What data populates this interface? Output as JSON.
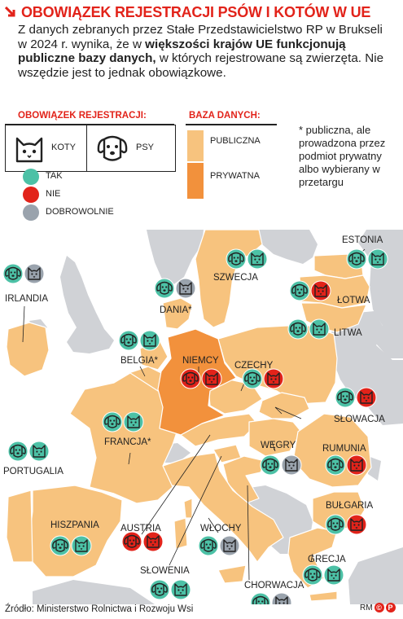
{
  "title": "OBOWIĄZEK REJESTRACJI PSÓW I KOTÓW W UE",
  "intro": {
    "part1": "Z danych zebranych przez Stałe Przedstawicielstwo RP w Brukseli w 2024 r. wynika, że w ",
    "bold": "większości krajów UE funkcjonują publiczne bazy danych,",
    "part2": " w których rejestrowane są zwierzęta. Nie wszędzie jest to jednak obowiązkowe."
  },
  "legend": {
    "registration_heading": "OBOWIĄZEK REJESTRACJI:",
    "cats_label": "KOTY",
    "dogs_label": "PSY",
    "status": [
      {
        "key": "tak",
        "label": "TAK",
        "color": "#4cc1a6"
      },
      {
        "key": "nie",
        "label": "NIE",
        "color": "#e2231a"
      },
      {
        "key": "dobrowolnie",
        "label": "DOBROWOLNIE",
        "color": "#9aa3ad"
      }
    ],
    "database_heading": "BAZA DANYCH:",
    "databases": [
      {
        "label": "PUBLICZNA",
        "color": "#f7c37e"
      },
      {
        "label": "PRYWATNA",
        "color": "#f2913c"
      }
    ],
    "note": "* publiczna, ale prowadzona przez podmiot prywatny albo wybierany w przetargu"
  },
  "colors": {
    "sea": "#ffffff",
    "non_eu": "#d0d2d6",
    "public": "#f7c37e",
    "private": "#f2913c",
    "text": "#222222",
    "accent": "#e2231a"
  },
  "countries": [
    {
      "name": "IRLANDIA",
      "db": "public",
      "dog": "tak",
      "cat": "dobrowolnie"
    },
    {
      "name": "DANIA*",
      "db": "public",
      "dog": "tak",
      "cat": "dobrowolnie"
    },
    {
      "name": "SZWECJA",
      "db": "public",
      "dog": "tak",
      "cat": "tak"
    },
    {
      "name": "ESTONIA",
      "db": "public",
      "dog": "tak",
      "cat": "tak"
    },
    {
      "name": "ŁOTWA",
      "db": "public",
      "dog": "tak",
      "cat": "nie"
    },
    {
      "name": "LITWA",
      "db": "public",
      "dog": "tak",
      "cat": "tak"
    },
    {
      "name": "BELGIA*",
      "db": "public",
      "dog": "tak",
      "cat": "tak"
    },
    {
      "name": "NIEMCY",
      "db": "private",
      "dog": "nie",
      "cat": "nie"
    },
    {
      "name": "CZECHY",
      "db": "public",
      "dog": "tak",
      "cat": "nie"
    },
    {
      "name": "SŁOWACJA",
      "db": "public",
      "dog": "tak",
      "cat": "nie"
    },
    {
      "name": "FRANCJA*",
      "db": "public",
      "dog": "tak",
      "cat": "tak"
    },
    {
      "name": "PORTUGALIA",
      "db": "public",
      "dog": "tak",
      "cat": "tak"
    },
    {
      "name": "WĘGRY",
      "db": "public",
      "dog": "tak",
      "cat": "dobrowolnie"
    },
    {
      "name": "RUMUNIA",
      "db": "public",
      "dog": "tak",
      "cat": "nie"
    },
    {
      "name": "BUŁGARIA",
      "db": "public",
      "dog": "tak",
      "cat": "nie"
    },
    {
      "name": "HISZPANIA",
      "db": "public",
      "dog": "tak",
      "cat": "tak"
    },
    {
      "name": "AUSTRIA",
      "db": "public",
      "dog": "nie",
      "cat": "nie"
    },
    {
      "name": "WŁOCHY",
      "db": "public",
      "dog": "tak",
      "cat": "dobrowolnie"
    },
    {
      "name": "SŁOWENIA",
      "db": "public",
      "dog": "tak",
      "cat": "tak"
    },
    {
      "name": "GRECJA",
      "db": "public",
      "dog": "tak",
      "cat": "tak"
    },
    {
      "name": "CHORWACJA",
      "db": "public",
      "dog": "tak",
      "cat": "dobrowolnie"
    }
  ],
  "source": "Źródło: Ministerstwo Rolnictwa i Rozwoju Wsi",
  "credit": {
    "initials": "RM",
    "mark": "P"
  }
}
